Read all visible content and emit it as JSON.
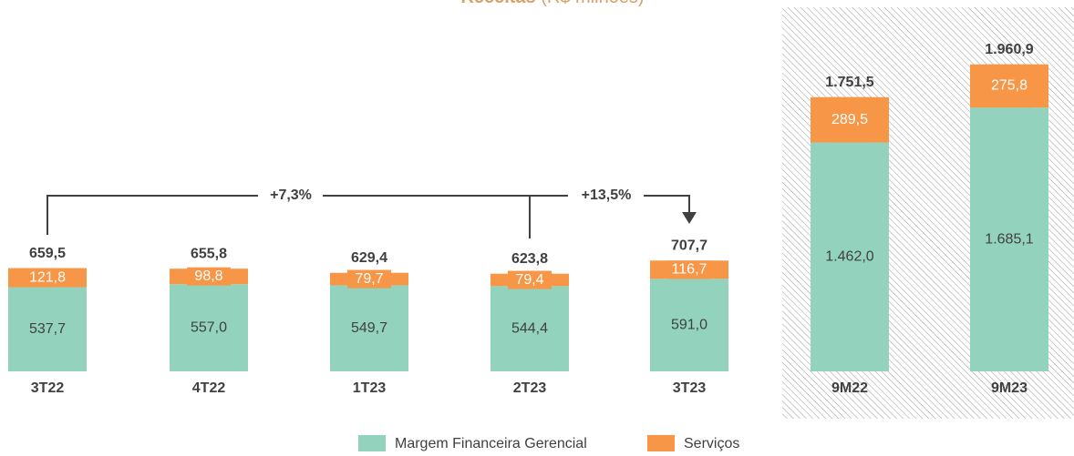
{
  "chart_data": {
    "type": "stacked_bar",
    "title": {
      "main": "Receitas",
      "unit": "(R$ milhões)"
    },
    "categories": [
      "3T22",
      "4T22",
      "1T23",
      "2T23",
      "3T23",
      "9M22",
      "9M23"
    ],
    "series": [
      {
        "name": "Margem Financeira Gerencial",
        "color": "#93d3bd",
        "values": [
          537.7,
          557.0,
          549.7,
          544.4,
          591.0,
          1462.0,
          1685.1
        ],
        "value_labels": [
          "537,7",
          "557,0",
          "549,7",
          "544,4",
          "591,0",
          "1.462,0",
          "1.685,1"
        ]
      },
      {
        "name": "Serviços",
        "color": "#f79646",
        "values": [
          121.8,
          98.8,
          79.7,
          79.4,
          116.7,
          289.5,
          275.8
        ],
        "value_labels": [
          "121,8",
          "98,8",
          "79,7",
          "79,4",
          "116,7",
          "289,5",
          "275,8"
        ]
      }
    ],
    "totals": [
      659.5,
      655.8,
      629.4,
      623.8,
      707.7,
      1751.5,
      1960.9
    ],
    "total_labels": [
      "659,5",
      "655,8",
      "629,4",
      "623,8",
      "707,7",
      "1.751,5",
      "1.960,9"
    ],
    "annotations": [
      "+7,3%",
      "+13,5%"
    ],
    "ylim": [
      0,
      2000
    ],
    "legend": "bottom"
  }
}
